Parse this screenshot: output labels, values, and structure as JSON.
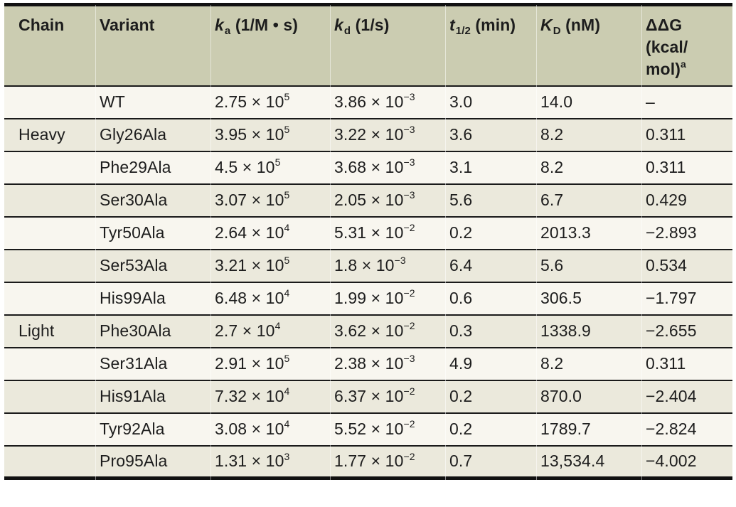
{
  "table": {
    "colors": {
      "header_bg": "#cbccb1",
      "row_plain": "#f8f6ef",
      "row_shaded": "#ebe9dc",
      "rule": "#1a1a1a",
      "outer_border": "#111111",
      "text": "#1d1d1d"
    },
    "columns": [
      {
        "key": "chain",
        "label": {
          "text": "Chain"
        }
      },
      {
        "key": "variant",
        "label": {
          "text": "Variant"
        }
      },
      {
        "key": "ka",
        "label": {
          "italic": "k",
          "sub": "a",
          "text": " (1/M • s)"
        }
      },
      {
        "key": "kd",
        "label": {
          "italic": "k",
          "sub": "d",
          "text": " (1/s)"
        }
      },
      {
        "key": "thalf",
        "label": {
          "italic": "t",
          "sub": "1/2",
          "text": " (min)"
        }
      },
      {
        "key": "kD",
        "label": {
          "italic": "K",
          "sub": "D",
          "text": " (nM)"
        }
      },
      {
        "key": "ddg",
        "label": {
          "lines": [
            "ΔΔG",
            "(kcal/",
            "mol)"
          ],
          "sup": "a"
        }
      }
    ],
    "rows": [
      {
        "chain": "",
        "variant": "WT",
        "ka": "2.75 × 10^5",
        "kd": "3.86 × 10^−3",
        "thalf": "3.0",
        "kD": "14.0",
        "ddg": "–"
      },
      {
        "chain": "Heavy",
        "variant": "Gly26Ala",
        "ka": "3.95 × 10^5",
        "kd": "3.22 × 10^−3",
        "thalf": "3.6",
        "kD": "8.2",
        "ddg": "0.311"
      },
      {
        "chain": "",
        "variant": "Phe29Ala",
        "ka": "4.5 × 10^5",
        "kd": "3.68 × 10^−3",
        "thalf": "3.1",
        "kD": "8.2",
        "ddg": "0.311"
      },
      {
        "chain": "",
        "variant": "Ser30Ala",
        "ka": "3.07 × 10^5",
        "kd": "2.05 × 10^−3",
        "thalf": "5.6",
        "kD": "6.7",
        "ddg": "0.429"
      },
      {
        "chain": "",
        "variant": "Tyr50Ala",
        "ka": "2.64 × 10^4",
        "kd": "5.31 × 10^−2",
        "thalf": "0.2",
        "kD": "2013.3",
        "ddg": "−2.893"
      },
      {
        "chain": "",
        "variant": "Ser53Ala",
        "ka": "3.21 × 10^5",
        "kd": "1.8 × 10^−3",
        "thalf": "6.4",
        "kD": "5.6",
        "ddg": "0.534"
      },
      {
        "chain": "",
        "variant": "His99Ala",
        "ka": "6.48 × 10^4",
        "kd": "1.99 × 10^−2",
        "thalf": "0.6",
        "kD": "306.5",
        "ddg": "−1.797"
      },
      {
        "chain": "Light",
        "variant": "Phe30Ala",
        "ka": "2.7 × 10^4",
        "kd": "3.62 × 10^−2",
        "thalf": "0.3",
        "kD": "1338.9",
        "ddg": "−2.655"
      },
      {
        "chain": "",
        "variant": "Ser31Ala",
        "ka": "2.91 × 10^5",
        "kd": "2.38 × 10^−3",
        "thalf": "4.9",
        "kD": "8.2",
        "ddg": "0.311"
      },
      {
        "chain": "",
        "variant": "His91Ala",
        "ka": "7.32 × 10^4",
        "kd": "6.37 × 10^−2",
        "thalf": "0.2",
        "kD": "870.0",
        "ddg": "−2.404"
      },
      {
        "chain": "",
        "variant": "Tyr92Ala",
        "ka": "3.08 × 10^4",
        "kd": "5.52 × 10^−2",
        "thalf": "0.2",
        "kD": "1789.7",
        "ddg": "−2.824"
      },
      {
        "chain": "",
        "variant": "Pro95Ala",
        "ka": "1.31 × 10^3",
        "kd": "1.77 × 10^−2",
        "thalf": "0.7",
        "kD": "13,534.4",
        "ddg": "−4.002"
      }
    ]
  }
}
